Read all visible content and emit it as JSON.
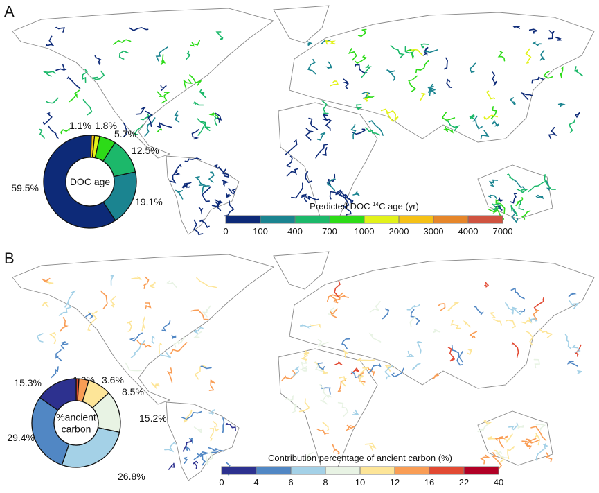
{
  "chart_data": [
    {
      "panel": "A",
      "type": "pie",
      "style": "donut",
      "center_label": "DOC age",
      "slices": [
        {
          "label": "1.1%",
          "value": 1.1,
          "color": "#f5c116"
        },
        {
          "label": "1.8%",
          "value": 1.8,
          "color": "#e2f21a"
        },
        {
          "label": "5.7%",
          "value": 5.7,
          "color": "#2ddb18"
        },
        {
          "label": "12.5%",
          "value": 12.5,
          "color": "#1cb86a"
        },
        {
          "label": "19.1%",
          "value": 19.1,
          "color": "#1b8490"
        },
        {
          "label": "59.5%",
          "value": 59.5,
          "color": "#0d2a78"
        }
      ],
      "colorbar": {
        "title": "Predicted DOC ",
        "title_sup": "14",
        "title_end": "C age (yr)",
        "ticks": [
          "0",
          "100",
          "400",
          "700",
          "1000",
          "2000",
          "3000",
          "4000",
          "7000"
        ],
        "colors": [
          "#0d2a78",
          "#1b8490",
          "#1cb86a",
          "#2ddb18",
          "#e2f21a",
          "#f5c116",
          "#e6862a",
          "#cf5340"
        ]
      }
    },
    {
      "panel": "B",
      "type": "pie",
      "style": "donut",
      "center_label": [
        "%ancient",
        "carbon"
      ],
      "slices": [
        {
          "label": "1.0%",
          "value": 1.0,
          "color": "#d7452c"
        },
        {
          "label": "3.6%",
          "value": 3.6,
          "color": "#f99d55"
        },
        {
          "label": "8.5%",
          "value": 8.5,
          "color": "#fde598"
        },
        {
          "label": "15.2%",
          "value": 15.2,
          "color": "#e8f3e4"
        },
        {
          "label": "26.8%",
          "value": 26.8,
          "color": "#a4d1e7"
        },
        {
          "label": "29.4%",
          "value": 29.4,
          "color": "#5187c4"
        },
        {
          "label": "15.3%",
          "value": 15.3,
          "color": "#2d318f"
        }
      ],
      "colorbar": {
        "title": "Contribution percentage of ancient carbon (%)",
        "ticks": [
          "0",
          "4",
          "6",
          "8",
          "10",
          "12",
          "16",
          "22",
          "40"
        ],
        "colors": [
          "#2d318f",
          "#5187c4",
          "#a4d1e7",
          "#e8f3e4",
          "#fde598",
          "#f99d55",
          "#e24a33",
          "#b10026"
        ]
      }
    }
  ]
}
